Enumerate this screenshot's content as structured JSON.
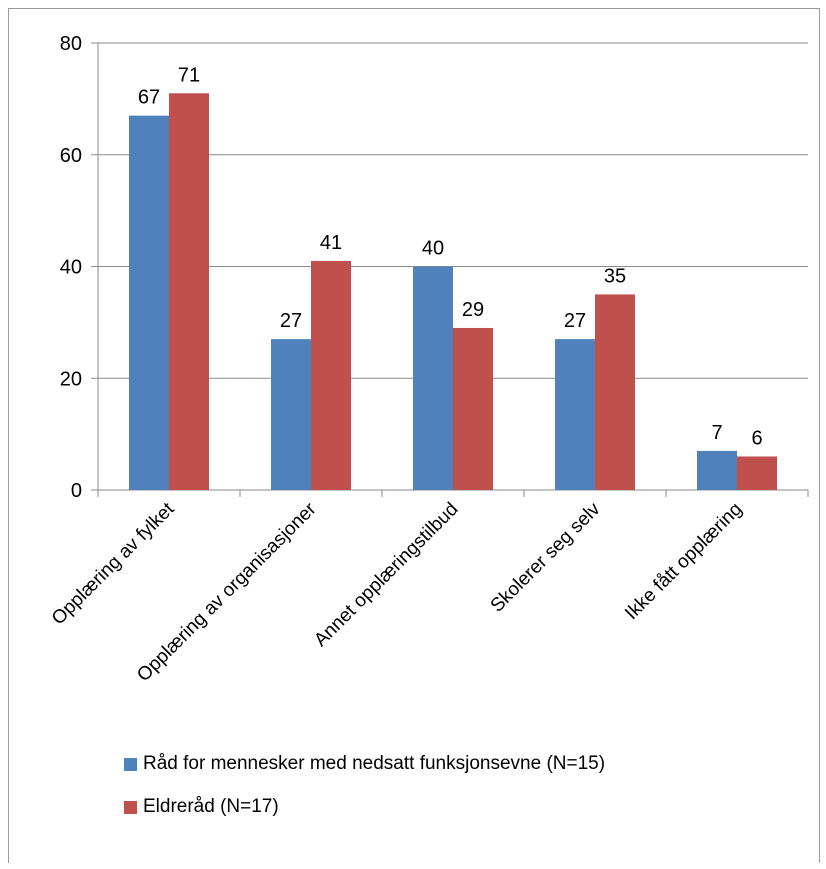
{
  "chart_data": {
    "type": "bar",
    "categories": [
      "Opplæring av fylket",
      "Opplæring av organisasjoner",
      "Annet opplæringstilbud",
      "Skolerer seg selv",
      "Ikke fått opplæring"
    ],
    "series": [
      {
        "name": "Råd for mennesker med nedsatt funksjonsevne (N=15)",
        "values": [
          67,
          27,
          40,
          27,
          7
        ],
        "color": "#4f81bd"
      },
      {
        "name": "Eldreråd (N=17)",
        "values": [
          71,
          41,
          29,
          35,
          6
        ],
        "color": "#c0504d"
      }
    ],
    "ylim": [
      0,
      80
    ],
    "yticks": [
      0,
      20,
      40,
      60,
      80
    ],
    "grid": true,
    "legend_position": "bottom",
    "title": "",
    "xlabel": "",
    "ylabel": ""
  },
  "legend": {
    "items": [
      {
        "label": "Råd for mennesker med nedsatt funksjonsevne (N=15)",
        "color": "#4f81bd"
      },
      {
        "label": "Eldreråd (N=17)",
        "color": "#c0504d"
      }
    ]
  }
}
